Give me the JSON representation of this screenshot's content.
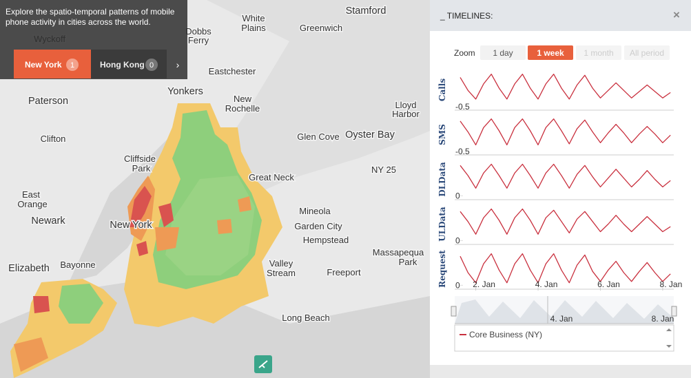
{
  "intro": {
    "text": "Explore the spatio-temporal patterns of mobile phone activity in cities across the world.",
    "tabs": [
      {
        "label": "New York",
        "count": "1"
      },
      {
        "label": "Hong Kong",
        "count": "0"
      }
    ],
    "next": "›"
  },
  "places": [
    "White",
    "Plains",
    "Stamford",
    "Greenwich",
    "Dobbs",
    "Ferry",
    "Eastchester",
    "Yonkers",
    "New",
    "Rochelle",
    "Lloyd",
    "Harbor",
    "Paterson",
    "Clifton",
    "Cliffside",
    "Park",
    "Glen Cove",
    "Oyster Bay",
    "Great Neck",
    "East",
    "Orange",
    "Newark",
    "Mineola",
    "Garden City",
    "Hempstead",
    "Valley",
    "Stream",
    "Massapequa",
    "Park",
    "Bayonne",
    "Elizabeth",
    "Freeport",
    "Long Beach",
    "New York",
    "Wyckoff",
    "NY 25"
  ],
  "panel": {
    "title": "_ TIMELINES:",
    "close": "×",
    "zoom_label": "Zoom",
    "zoom": [
      "1 day",
      "1 week",
      "1 month",
      "All period"
    ],
    "navigator_ticks": [
      "4. Jan",
      "8. Jan"
    ],
    "legend": "Core Business (NY)"
  },
  "chart_data": {
    "type": "line",
    "color": "#c9303e",
    "x": [
      1.5,
      1.75,
      2,
      2.25,
      2.5,
      2.75,
      3,
      3.25,
      3.5,
      3.75,
      4,
      4.25,
      4.5,
      4.75,
      5,
      5.25,
      5.5,
      5.75,
      6,
      6.25,
      6.5,
      6.75,
      7,
      7.25,
      7.5,
      7.75,
      8,
      8.25
    ],
    "xlim": [
      1.5,
      8.4
    ],
    "xticks": [
      {
        "value": 2,
        "label": "2. Jan"
      },
      {
        "value": 4,
        "label": "4. Jan"
      },
      {
        "value": 6,
        "label": "6. Jan"
      },
      {
        "value": 8,
        "label": "8. Jan"
      }
    ],
    "panels": [
      {
        "ylabel": "Calls",
        "ylim": [
          -0.7,
          2.8
        ],
        "yticks": [
          -0.5
        ],
        "values": [
          2.2,
          1.0,
          0.2,
          1.6,
          2.5,
          1.2,
          0.2,
          1.6,
          2.5,
          1.2,
          0.2,
          1.6,
          2.5,
          1.2,
          0.2,
          1.5,
          2.4,
          1.2,
          0.3,
          1.0,
          1.7,
          1.0,
          0.3,
          0.9,
          1.5,
          0.9,
          0.3,
          0.8
        ]
      },
      {
        "ylabel": "SMS",
        "ylim": [
          -0.7,
          2.8
        ],
        "yticks": [
          -0.5
        ],
        "values": [
          2.3,
          1.3,
          0.1,
          1.7,
          2.5,
          1.4,
          0.1,
          1.7,
          2.5,
          1.4,
          0.1,
          1.7,
          2.5,
          1.4,
          0.2,
          1.6,
          2.4,
          1.3,
          0.3,
          1.2,
          2.0,
          1.2,
          0.3,
          1.1,
          1.8,
          1.1,
          0.3,
          1.0
        ]
      },
      {
        "ylabel": "DLData",
        "ylim": [
          -0.2,
          2.8
        ],
        "yticks": [
          0
        ],
        "values": [
          2.4,
          1.6,
          0.6,
          1.8,
          2.5,
          1.6,
          0.6,
          1.8,
          2.5,
          1.6,
          0.6,
          1.8,
          2.5,
          1.6,
          0.6,
          1.7,
          2.4,
          1.5,
          0.7,
          1.4,
          2.1,
          1.4,
          0.7,
          1.3,
          2.0,
          1.3,
          0.7,
          1.2
        ]
      },
      {
        "ylabel": "ULData",
        "ylim": [
          -0.2,
          2.8
        ],
        "yticks": [
          0
        ],
        "values": [
          2.3,
          1.5,
          0.5,
          1.8,
          2.5,
          1.6,
          0.5,
          1.8,
          2.5,
          1.6,
          0.5,
          1.8,
          2.4,
          1.5,
          0.6,
          1.7,
          2.3,
          1.5,
          0.7,
          1.3,
          2.0,
          1.3,
          0.7,
          1.3,
          1.9,
          1.3,
          0.7,
          1.1
        ]
      },
      {
        "ylabel": "Request",
        "ylim": [
          -0.2,
          2.8
        ],
        "yticks": [
          0
        ],
        "values": [
          2.3,
          1.0,
          0.2,
          1.7,
          2.5,
          1.2,
          0.2,
          1.7,
          2.5,
          1.2,
          0.2,
          1.7,
          2.5,
          1.2,
          0.2,
          1.6,
          2.4,
          1.1,
          0.3,
          1.2,
          1.9,
          1.0,
          0.3,
          1.1,
          1.8,
          1.0,
          0.3,
          0.9
        ]
      }
    ]
  }
}
